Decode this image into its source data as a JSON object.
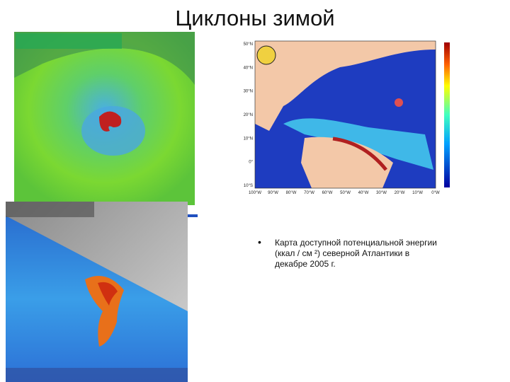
{
  "slide": {
    "title": "Циклоны зимой",
    "bullet": "Карта доступной потенциальной энергии (ккал / см ²) северной Атлантики в декабре 2005 г.",
    "map": {
      "lat_labels": [
        "50°N",
        "40°N",
        "30°N",
        "20°N",
        "10°N",
        "0°",
        "10°S"
      ],
      "lon_labels": [
        "100°W",
        "90°W",
        "80°W",
        "70°W",
        "60°W",
        "50°W",
        "40°W",
        "30°W",
        "20°W",
        "10°W",
        "0°W"
      ]
    }
  }
}
